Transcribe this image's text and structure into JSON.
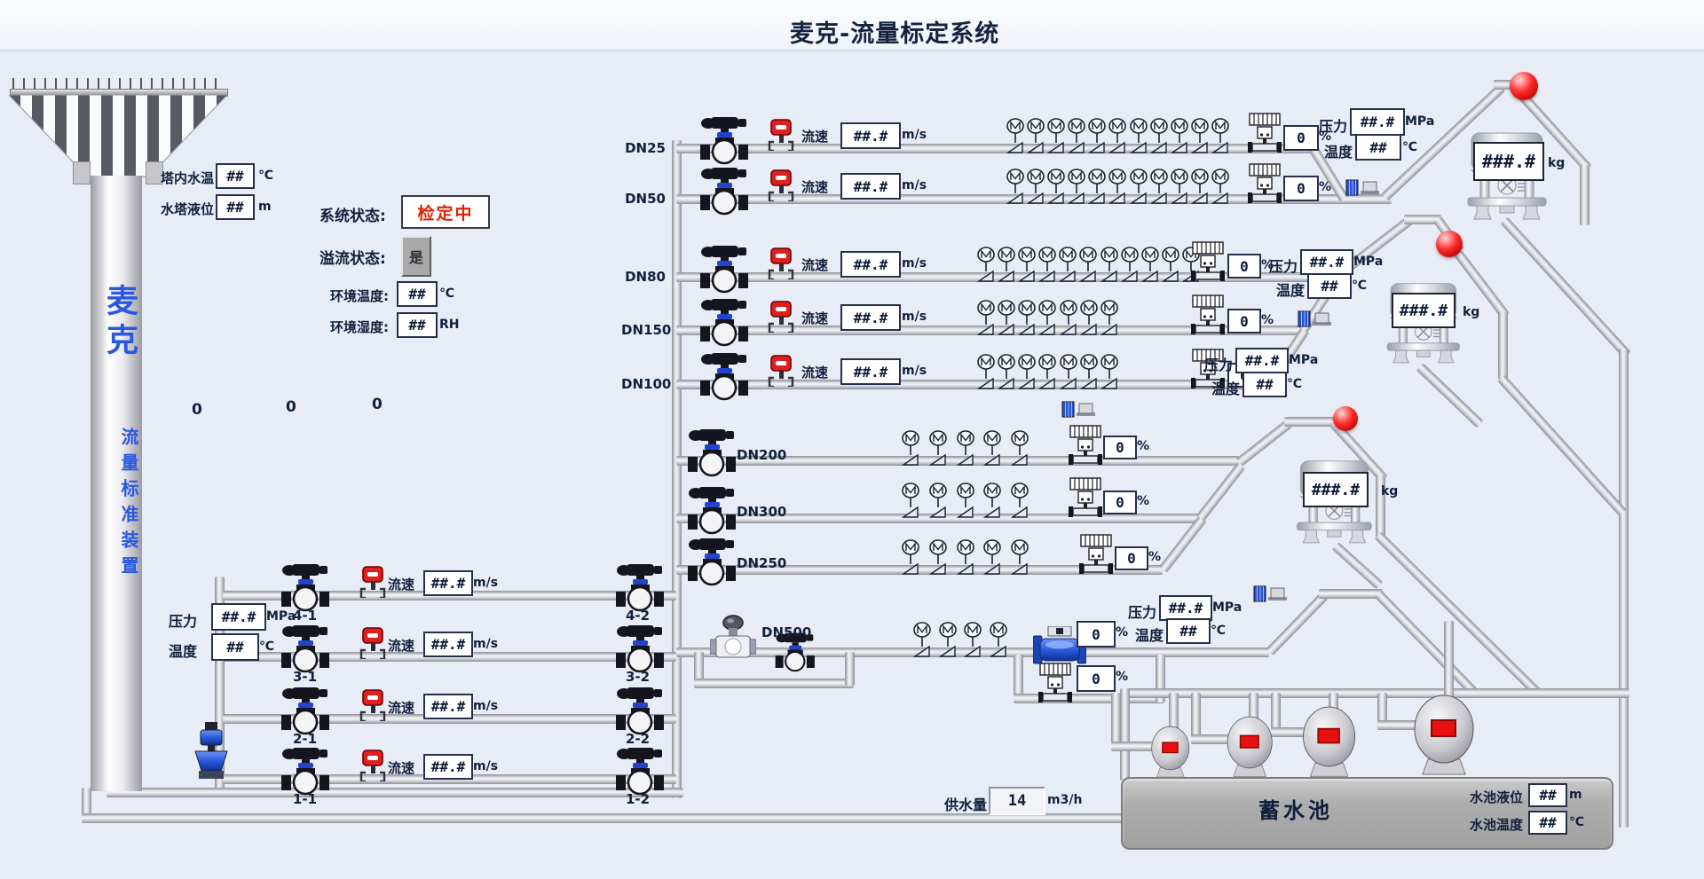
{
  "title": "麦克-流量标定系统",
  "colors": {
    "accent_blue": "#2b58e0",
    "alarm_red": "#e02020",
    "status_text_red": "#dd2200",
    "pipe_gray": "#dfe2e8",
    "background": "#e8ecf6",
    "tank_gray": "#aeaeae"
  },
  "tower": {
    "name": "麦克",
    "device_label": "流量标准装置",
    "temp_label": "塔内水温",
    "temp_value": "##",
    "temp_unit": "℃",
    "level_label": "水塔液位",
    "level_value": "##",
    "level_unit": "m"
  },
  "status_panel": {
    "system_label": "系统状态:",
    "system_value": "检定中",
    "overflow_label": "溢流状态:",
    "overflow_value": "是",
    "env_temp_label": "环境温度:",
    "env_temp_value": "##",
    "env_temp_unit": "℃",
    "env_hum_label": "环境湿度:",
    "env_hum_value": "##",
    "env_hum_unit": "RH"
  },
  "counters": {
    "c1": "0",
    "c2": "0",
    "c3": "0"
  },
  "labels": {
    "flow_speed": "流速",
    "flow_speed_value": "##.#",
    "flow_speed_unit": "m/s",
    "pressure": "压力",
    "pressure_value": "##.#",
    "pressure_unit": "MPa",
    "temperature": "温度",
    "temperature_value": "##",
    "temperature_unit": "℃",
    "percent_unit": "%",
    "weight_value": "###.#",
    "weight_unit": "kg"
  },
  "lines": [
    {
      "dn": "DN25",
      "valves": 11,
      "percent": "0"
    },
    {
      "dn": "DN50",
      "valves": 11,
      "percent": "0"
    },
    {
      "dn": "DN80",
      "valves": 11,
      "percent": "0"
    },
    {
      "dn": "DN150",
      "valves": 7,
      "percent": "0"
    },
    {
      "dn": "DN100",
      "valves": 7,
      "percent": "0"
    },
    {
      "dn": "DN200",
      "valves": 5,
      "percent": "0"
    },
    {
      "dn": "DN300",
      "valves": 5,
      "percent": "0"
    },
    {
      "dn": "DN250",
      "valves": 5,
      "percent": "0"
    },
    {
      "dn": "DN500",
      "valves": 4,
      "percent": "0",
      "percent2": "0"
    }
  ],
  "scales": [
    {
      "value": "###.#"
    },
    {
      "value": "###.#"
    },
    {
      "value": "###.#"
    }
  ],
  "station": {
    "rows": [
      {
        "left_label": "4-1",
        "right_label": "4-2"
      },
      {
        "left_label": "3-1",
        "right_label": "3-2"
      },
      {
        "left_label": "2-1",
        "right_label": "2-2"
      },
      {
        "left_label": "1-1",
        "right_label": "1-2"
      }
    ],
    "pressure_value": "##.#",
    "temperature_value": "##"
  },
  "supply": {
    "label": "供水量",
    "value": "14",
    "unit": "m3/h"
  },
  "reservoir": {
    "name": "蓄水池",
    "level_label": "水池液位",
    "level_value": "##",
    "level_unit": "m",
    "temp_label": "水池温度",
    "temp_value": "##",
    "temp_unit": "℃"
  }
}
